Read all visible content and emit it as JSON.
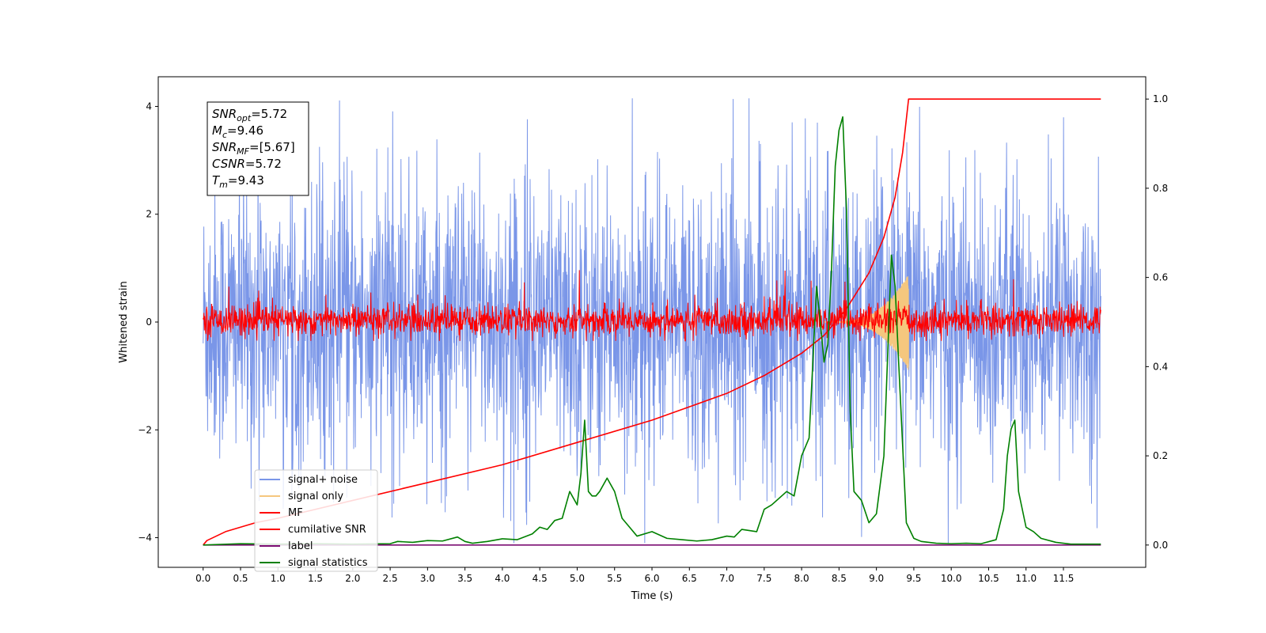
{
  "chart_data": {
    "type": "line",
    "xlabel": "Time (s)",
    "ylabel": "Whitened strain",
    "xlim": [
      -0.6,
      12.6
    ],
    "ylim": [
      -4.55,
      4.55
    ],
    "y2lim": [
      -0.05,
      1.05
    ],
    "x_ticks": [
      0.0,
      0.5,
      1.0,
      1.5,
      2.0,
      2.5,
      3.0,
      3.5,
      4.0,
      4.5,
      5.0,
      5.5,
      6.0,
      6.5,
      7.0,
      7.5,
      8.0,
      8.5,
      9.0,
      9.5,
      10.0,
      10.5,
      11.0,
      11.5
    ],
    "x_tick_labels": [
      "0.0",
      "0.5",
      "1.0",
      "1.5",
      "2.0",
      "2.5",
      "3.0",
      "3.5",
      "4.0",
      "4.5",
      "5.0",
      "5.5",
      "6.0",
      "6.5",
      "7.0",
      "7.5",
      "8.0",
      "8.5",
      "9.0",
      "9.5",
      "10.0",
      "10.5",
      "11.0",
      "11.5"
    ],
    "y_ticks": [
      -4,
      -2,
      0,
      2,
      4
    ],
    "y_tick_labels": [
      "−4",
      "−2",
      "0",
      "2",
      "4"
    ],
    "y2_ticks": [
      0.0,
      0.2,
      0.4,
      0.6,
      0.8,
      1.0
    ],
    "y2_tick_labels": [
      "0.0",
      "0.2",
      "0.4",
      "0.6",
      "0.8",
      "1.0"
    ],
    "grid": false,
    "legend_position": "lower-left",
    "annotation": {
      "lines": [
        {
          "name": "SNR",
          "sub": "opt",
          "value": "=5.72"
        },
        {
          "name": "M",
          "sub": "c",
          "value": "=9.46"
        },
        {
          "name": "SNR",
          "sub": "MF",
          "value": "=[5.67]"
        },
        {
          "name": "CSNR",
          "sub": "",
          "value": "=5.72"
        },
        {
          "name": "T",
          "sub": "m",
          "value": "=9.43"
        }
      ]
    },
    "series": [
      {
        "name": "signal+ noise",
        "axis": "left",
        "color": "#7a96e8",
        "kind": "noise-band",
        "x_range": [
          0.0,
          12.0
        ],
        "envelope": [
          -2.8,
          2.8
        ],
        "extremes": [
          -4.1,
          4.15
        ]
      },
      {
        "name": "signal only",
        "axis": "left",
        "color": "#f5c77e",
        "kind": "chirp",
        "x_range": [
          8.3,
          9.43
        ],
        "peak_amplitude": 0.9
      },
      {
        "name": "MF",
        "axis": "left",
        "color": "#ff0000",
        "kind": "noise-band",
        "x_range": [
          0.0,
          12.0
        ],
        "envelope": [
          -0.28,
          0.35
        ],
        "extremes": [
          -0.35,
          1.0
        ]
      },
      {
        "name": "cumilative SNR",
        "axis": "right",
        "color": "#ff0000",
        "kind": "line",
        "x": [
          0.0,
          0.05,
          0.3,
          0.7,
          1.0,
          2.0,
          3.0,
          4.0,
          5.0,
          6.0,
          6.5,
          7.0,
          7.5,
          8.0,
          8.3,
          8.6,
          8.9,
          9.1,
          9.25,
          9.35,
          9.43,
          9.5,
          10.0,
          11.0,
          12.0
        ],
        "values": [
          0.0,
          0.01,
          0.03,
          0.05,
          0.06,
          0.1,
          0.14,
          0.18,
          0.23,
          0.28,
          0.31,
          0.34,
          0.38,
          0.43,
          0.47,
          0.53,
          0.61,
          0.69,
          0.78,
          0.88,
          1.0,
          1.0,
          1.0,
          1.0,
          1.0
        ]
      },
      {
        "name": "label",
        "axis": "right",
        "color": "#7b0d72",
        "kind": "line",
        "x": [
          0.0,
          12.0
        ],
        "values": [
          0.0,
          0.0
        ]
      },
      {
        "name": "signal statistics",
        "axis": "right",
        "color": "#008000",
        "kind": "line",
        "x": [
          0.0,
          0.5,
          1.0,
          1.5,
          2.0,
          2.5,
          2.6,
          2.8,
          3.0,
          3.2,
          3.4,
          3.5,
          3.6,
          3.8,
          4.0,
          4.2,
          4.4,
          4.5,
          4.6,
          4.7,
          4.8,
          4.9,
          5.0,
          5.05,
          5.1,
          5.15,
          5.2,
          5.25,
          5.3,
          5.4,
          5.5,
          5.6,
          5.7,
          5.8,
          6.0,
          6.2,
          6.4,
          6.6,
          6.8,
          7.0,
          7.1,
          7.2,
          7.4,
          7.5,
          7.6,
          7.8,
          7.9,
          8.0,
          8.1,
          8.2,
          8.25,
          8.3,
          8.35,
          8.4,
          8.45,
          8.5,
          8.55,
          8.6,
          8.65,
          8.7,
          8.8,
          8.9,
          9.0,
          9.1,
          9.2,
          9.25,
          9.3,
          9.4,
          9.5,
          9.6,
          9.8,
          10.0,
          10.2,
          10.4,
          10.6,
          10.7,
          10.75,
          10.8,
          10.85,
          10.9,
          11.0,
          11.1,
          11.2,
          11.4,
          11.6,
          11.8,
          12.0
        ],
        "values": [
          0.0,
          0.003,
          0.002,
          0.003,
          0.002,
          0.003,
          0.008,
          0.006,
          0.01,
          0.009,
          0.018,
          0.008,
          0.004,
          0.008,
          0.014,
          0.012,
          0.025,
          0.04,
          0.035,
          0.055,
          0.06,
          0.12,
          0.09,
          0.16,
          0.28,
          0.12,
          0.11,
          0.11,
          0.12,
          0.15,
          0.12,
          0.06,
          0.04,
          0.02,
          0.03,
          0.015,
          0.012,
          0.009,
          0.012,
          0.02,
          0.018,
          0.035,
          0.03,
          0.08,
          0.09,
          0.12,
          0.11,
          0.2,
          0.24,
          0.58,
          0.5,
          0.41,
          0.45,
          0.62,
          0.85,
          0.93,
          0.96,
          0.75,
          0.3,
          0.12,
          0.1,
          0.05,
          0.07,
          0.2,
          0.65,
          0.58,
          0.4,
          0.05,
          0.015,
          0.008,
          0.004,
          0.003,
          0.004,
          0.003,
          0.012,
          0.08,
          0.2,
          0.26,
          0.28,
          0.12,
          0.04,
          0.03,
          0.015,
          0.006,
          0.002,
          0.002,
          0.002
        ]
      }
    ]
  }
}
